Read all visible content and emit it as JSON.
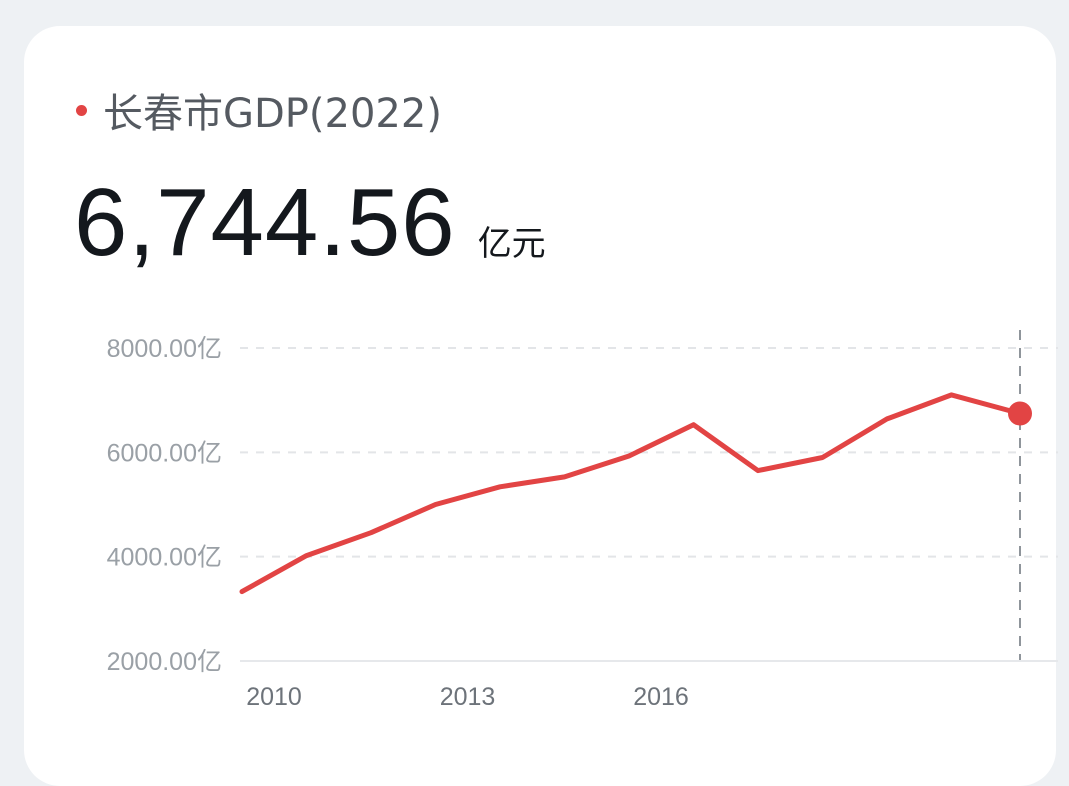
{
  "header": {
    "title": "长春市GDP(2022)",
    "value": "6,744.56",
    "unit": "亿元"
  },
  "colors": {
    "accent": "#e24444",
    "grid": "#e3e5e8",
    "card": "#ffffff",
    "background": "#eef1f4"
  },
  "chart_data": {
    "type": "line",
    "title": "",
    "xlabel": "",
    "ylabel": "",
    "x": [
      2010,
      2011,
      2012,
      2013,
      2014,
      2015,
      2016,
      2017,
      2018,
      2019,
      2020,
      2021,
      2022
    ],
    "x_ticks": [
      "2010",
      "2013",
      "2016"
    ],
    "y_ticks": [
      "8000.00亿",
      "6000.00亿",
      "4000.00亿",
      "2000.00亿"
    ],
    "y_tick_values": [
      8000,
      6000,
      4000,
      2000
    ],
    "ylim": [
      2000,
      8000
    ],
    "grid": true,
    "grid_style": "dashed",
    "highlight_last_point": true,
    "series": [
      {
        "values": [
          3330,
          4020,
          4460,
          5000,
          5340,
          5530,
          5930,
          6530,
          5650,
          5900,
          6640,
          7100,
          6744.56
        ],
        "color": "#e24444"
      }
    ]
  }
}
